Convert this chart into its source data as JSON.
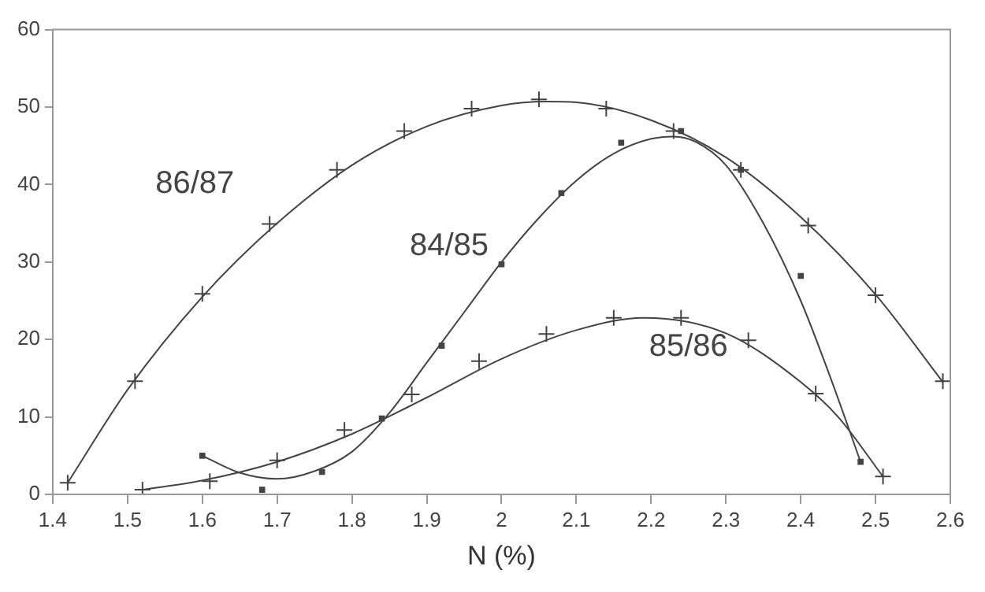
{
  "chart_data": {
    "type": "scatter",
    "xlabel": "N (%)",
    "xlim": [
      1.4,
      2.6
    ],
    "xticks": [
      1.4,
      1.5,
      1.6,
      1.7,
      1.8,
      1.9,
      {
        "value": 2.0,
        "label": "2"
      },
      2.1,
      2.2,
      2.3,
      2.4,
      2.5,
      2.6
    ],
    "ylim": [
      0,
      60
    ],
    "yticks": [
      0,
      10,
      20,
      30,
      40,
      50,
      60
    ],
    "grid": false,
    "legend": false,
    "series": [
      {
        "type": "scatter",
        "marker": "cross",
        "color": "#444444",
        "x": [
          1.42,
          1.51,
          1.6,
          1.69,
          1.78,
          1.87,
          1.96,
          2.05,
          2.14,
          2.23,
          2.32,
          2.41,
          2.5,
          2.59
        ],
        "values": [
          1.5,
          14.6,
          25.9,
          34.9,
          41.9,
          46.9,
          49.8,
          51,
          49.8,
          46.9,
          41.9,
          34.7,
          25.7,
          14.6
        ]
      },
      {
        "type": "line",
        "name": "86/87",
        "marker": "none",
        "color": "#444444",
        "x": [
          1.42,
          1.5,
          1.6,
          1.7,
          1.8,
          1.9,
          2.0,
          2.06,
          2.1,
          2.2,
          2.3,
          2.4,
          2.5,
          2.59
        ],
        "values": [
          1.5,
          13.5,
          25.5,
          35,
          42.5,
          47.5,
          50.2,
          50.7,
          50.6,
          48.3,
          43.5,
          35.8,
          25.8,
          14.5
        ]
      },
      {
        "type": "scatter",
        "marker": "square",
        "color": "#444444",
        "x": [
          1.6,
          1.68,
          1.76,
          1.84,
          1.92,
          2.0,
          2.08,
          2.16,
          2.24,
          2.32,
          2.4,
          2.48
        ],
        "values": [
          5.0,
          0.6,
          2.9,
          9.8,
          19.2,
          29.7,
          38.9,
          45.4,
          46.9,
          41.9,
          28.2,
          4.2
        ]
      },
      {
        "type": "line",
        "name": "84/85",
        "marker": "none",
        "color": "#444444",
        "x": [
          1.6,
          1.65,
          1.7,
          1.75,
          1.8,
          1.85,
          1.9,
          1.95,
          2.0,
          2.05,
          2.1,
          2.15,
          2.2,
          2.23,
          2.26,
          2.3,
          2.35,
          2.4,
          2.44,
          2.48
        ],
        "values": [
          5,
          2.8,
          2,
          3,
          5.5,
          10.5,
          17,
          23.5,
          30,
          35.7,
          40.5,
          44,
          45.9,
          46.2,
          45.5,
          42.5,
          35,
          25,
          15,
          4.2
        ]
      },
      {
        "type": "scatter",
        "marker": "cross",
        "color": "#444444",
        "x": [
          1.52,
          1.61,
          1.7,
          1.79,
          1.88,
          1.97,
          2.06,
          2.15,
          2.24,
          2.33,
          2.42,
          2.51
        ],
        "values": [
          0.6,
          1.7,
          4.4,
          8.3,
          12.9,
          17.2,
          20.7,
          22.8,
          22.8,
          19.9,
          13.0,
          2.3
        ]
      },
      {
        "type": "line",
        "name": "85/86",
        "marker": "none",
        "color": "#444444",
        "x": [
          1.52,
          1.6,
          1.7,
          1.8,
          1.9,
          2.0,
          2.1,
          2.19,
          2.3,
          2.4,
          2.45,
          2.51
        ],
        "values": [
          0.6,
          1.8,
          4.2,
          7.8,
          12.5,
          17.5,
          21.2,
          22.8,
          20.8,
          14.5,
          10,
          2.3
        ]
      }
    ]
  }
}
